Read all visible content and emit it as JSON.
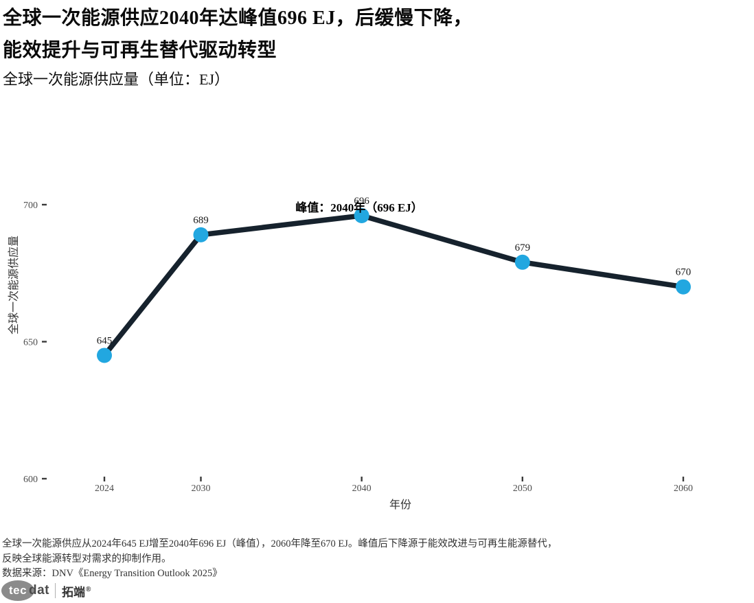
{
  "header": {
    "title_line1": "全球一次能源供应2040年达峰值696 EJ，后缓慢下降，",
    "title_line2": "能效提升与可再生替代驱动转型",
    "subtitle": "全球一次能源供应量（单位：EJ）"
  },
  "chart_data": {
    "type": "line",
    "series_name": "全球一次能源供应量",
    "x": [
      2024,
      2030,
      2040,
      2050,
      2060
    ],
    "values": [
      645,
      689,
      696,
      679,
      670
    ],
    "point_labels": [
      "645",
      "689",
      "696",
      "679",
      "670"
    ],
    "xlabel": "年份",
    "ylabel": "全球一次能源供应量",
    "x_ticks": [
      2024,
      2030,
      2040,
      2050,
      2060
    ],
    "y_ticks": [
      600,
      650,
      700
    ],
    "xlim": [
      2024,
      2060
    ],
    "ylim": [
      600,
      703
    ],
    "grid": false,
    "legend": "none",
    "annotation": "峰值：2040年（696 EJ）",
    "annotation_target": {
      "year": 2040,
      "value": 696
    },
    "line_color": "#16222d",
    "point_color": "#22a7e0",
    "tick_color": "#3a3a3a",
    "tick_label_color": "#4d4d4d"
  },
  "footer": {
    "caption_line1": "全球一次能源供应从2024年645 EJ增至2040年696 EJ（峰值），2060年降至670 EJ。峰值后下降源于能效改进与可再生能源替代，",
    "caption_line2": "反映全球能源转型对需求的抑制作用。",
    "source": "数据来源：DNV《Energy Transition Outlook 2025》"
  },
  "logo": {
    "tec": "tec",
    "dat": "dat",
    "brand": "拓端",
    "reg": "®"
  }
}
